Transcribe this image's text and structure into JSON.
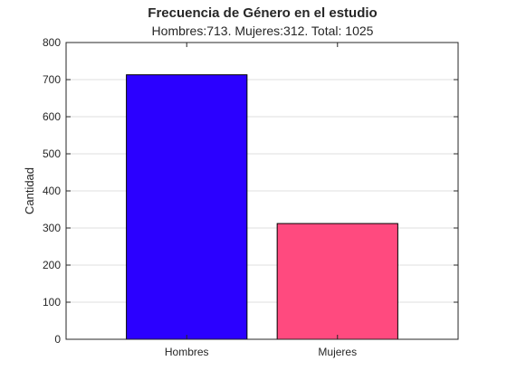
{
  "chart_data": {
    "type": "bar",
    "title": "Frecuencia de Género en el estudio",
    "subtitle": "Hombres:713. Mujeres:312. Total: 1025",
    "xlabel": "",
    "ylabel": "Cantidad",
    "categories": [
      "Hombres",
      "Mujeres"
    ],
    "values": [
      713,
      312
    ],
    "colors": [
      "#2b00ff",
      "#ff4a7f"
    ],
    "ylim": [
      0,
      800
    ],
    "yticks": [
      0,
      100,
      200,
      300,
      400,
      500,
      600,
      700,
      800
    ],
    "grid": true,
    "legend": "none"
  }
}
